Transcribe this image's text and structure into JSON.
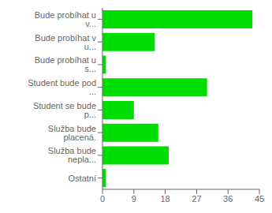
{
  "chart_data": {
    "type": "bar",
    "orientation": "horizontal",
    "categories": [
      "Ostatní",
      "Služba bude nepla...",
      "Služba bude placená.",
      "Student se bude p...",
      "Student bude pod ...",
      "Bude probíhat u s...",
      "Bude probíhat v u...",
      "Bude probíhat u v..."
    ],
    "values": [
      1,
      19,
      16,
      9,
      30,
      1,
      15,
      43
    ],
    "color": "#00dd00",
    "xlim": [
      0,
      45
    ],
    "xticks": [
      0,
      9,
      18,
      27,
      36,
      45
    ],
    "grid": false
  }
}
